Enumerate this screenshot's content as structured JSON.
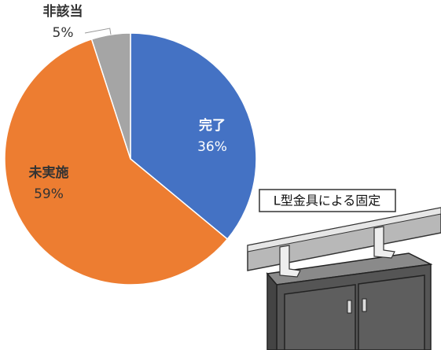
{
  "chart_data": {
    "type": "pie",
    "categories": [
      "完了",
      "未実施",
      "非該当"
    ],
    "values": [
      36,
      59,
      5
    ],
    "value_labels": [
      "36%",
      "59%",
      "5%"
    ],
    "colors": [
      "#4472c4",
      "#ed7d31",
      "#a5a5a5"
    ],
    "annotation": "L型金具による固定"
  }
}
